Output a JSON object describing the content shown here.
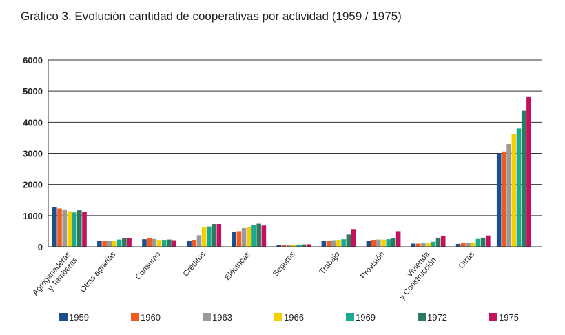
{
  "title": "Gráfico 3. Evolución cantidad de cooperativas por actividad (1959 / 1975)",
  "chart_data": {
    "type": "bar",
    "title": "Gráfico 3. Evolución cantidad de cooperativas por actividad (1959 / 1975)",
    "xlabel": "",
    "ylabel": "",
    "ylim": [
      0,
      6000
    ],
    "yticks": [
      "0",
      "1000",
      "2000",
      "3000",
      "4000",
      "5000",
      "6000"
    ],
    "grid": true,
    "legend_position": "bottom",
    "categories": [
      [
        "Agroganaderas",
        "y Tamberas"
      ],
      [
        "Otras agrarias"
      ],
      [
        "Consumo"
      ],
      [
        "Créditos"
      ],
      [
        "Eléctricas"
      ],
      [
        "Seguros"
      ],
      [
        "Trabajo"
      ],
      [
        "Provisión"
      ],
      [
        "Vivienda",
        "y Construcción"
      ],
      [
        "Otras"
      ],
      [
        ""
      ]
    ],
    "series": [
      {
        "name": "1959",
        "color": "#1f4e8c",
        "values": [
          1280,
          200,
          240,
          200,
          470,
          50,
          200,
          200,
          100,
          90,
          3000
        ]
      },
      {
        "name": "1960",
        "color": "#f05a1e",
        "values": [
          1230,
          200,
          270,
          220,
          500,
          50,
          200,
          220,
          100,
          110,
          3060
        ]
      },
      {
        "name": "1963",
        "color": "#9a9a9a",
        "values": [
          1200,
          190,
          250,
          370,
          600,
          60,
          210,
          230,
          120,
          120,
          3300
        ]
      },
      {
        "name": "1966",
        "color": "#f5d000",
        "values": [
          1140,
          200,
          220,
          620,
          640,
          70,
          220,
          230,
          130,
          140,
          3620
        ]
      },
      {
        "name": "1969",
        "color": "#1aaa90",
        "values": [
          1100,
          230,
          220,
          650,
          690,
          70,
          240,
          240,
          160,
          250,
          3800
        ]
      },
      {
        "name": "1972",
        "color": "#2e7a5e",
        "values": [
          1170,
          290,
          230,
          730,
          740,
          75,
          390,
          280,
          290,
          290,
          4370
        ]
      },
      {
        "name": "1975",
        "color": "#c4115e",
        "values": [
          1130,
          270,
          210,
          730,
          680,
          80,
          570,
          500,
          340,
          360,
          4830
        ]
      }
    ]
  }
}
